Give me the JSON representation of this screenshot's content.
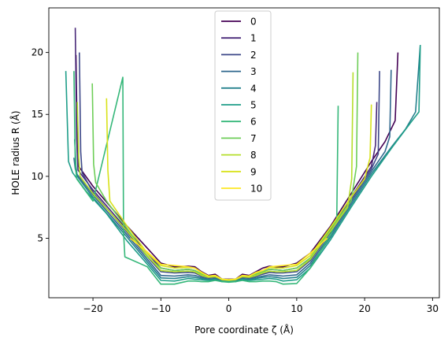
{
  "chart_data": {
    "type": "line",
    "xlabel": "Pore coordinate ζ (Å)",
    "ylabel": "HOLE radius R (Å)",
    "xlim": [
      -26.5,
      31
    ],
    "ylim": [
      0.2,
      23.6
    ],
    "x_ticks": [
      -20,
      -10,
      0,
      10,
      20,
      30
    ],
    "x_tick_labels": [
      "−20",
      "−10",
      "0",
      "10",
      "20",
      "30"
    ],
    "y_ticks": [
      5,
      10,
      15,
      20
    ],
    "y_tick_labels": [
      "5",
      "10",
      "15",
      "20"
    ],
    "grid": false,
    "legend_position": "top-center",
    "series": [
      {
        "name": "0",
        "color": "#440154",
        "x": [
          -22.5,
          -22.3,
          -22.1,
          -20,
          -15,
          -12,
          -10,
          -8,
          -6,
          -5,
          -4,
          -3,
          -2,
          -1,
          0,
          1,
          2,
          3,
          4,
          5,
          6,
          7,
          8,
          10,
          12,
          15,
          18,
          21,
          23,
          24.5,
          24.9
        ],
        "y": [
          19.8,
          12.5,
          10.8,
          9.2,
          6.0,
          4.2,
          3.0,
          2.7,
          2.75,
          2.7,
          2.3,
          2.0,
          2.1,
          1.7,
          1.7,
          1.7,
          2.1,
          2.0,
          2.3,
          2.6,
          2.75,
          2.7,
          2.7,
          3.0,
          3.8,
          6.0,
          8.6,
          11.2,
          12.8,
          14.5,
          20.0
        ]
      },
      {
        "name": "1",
        "color": "#482878",
        "x": [
          -22.6,
          -22.4,
          -22.2,
          -20,
          -15,
          -12,
          -10,
          -8,
          -6,
          -5,
          -4,
          -3,
          -2,
          -1,
          0,
          1,
          2,
          3,
          4,
          5,
          6,
          7,
          8,
          10,
          12,
          15,
          18,
          21,
          21.6,
          21.8
        ],
        "y": [
          22.0,
          13.0,
          10.5,
          8.9,
          5.7,
          3.8,
          2.6,
          2.4,
          2.5,
          2.4,
          2.1,
          1.9,
          1.95,
          1.7,
          1.65,
          1.7,
          1.95,
          1.9,
          2.1,
          2.3,
          2.5,
          2.45,
          2.4,
          2.6,
          3.4,
          5.7,
          8.3,
          10.8,
          12.5,
          16.0
        ]
      },
      {
        "name": "2",
        "color": "#3e4989",
        "x": [
          -22.0,
          -21.8,
          -21.6,
          -20,
          -15,
          -12,
          -10,
          -8,
          -6,
          -5,
          -4,
          -3,
          -2,
          -1,
          0,
          1,
          2,
          3,
          4,
          5,
          6,
          7,
          8,
          10,
          12,
          15,
          18,
          21,
          22,
          22.2
        ],
        "y": [
          20.0,
          12.0,
          10.3,
          8.7,
          5.5,
          3.5,
          2.3,
          2.2,
          2.25,
          2.2,
          1.95,
          1.8,
          1.85,
          1.65,
          1.6,
          1.65,
          1.85,
          1.8,
          1.95,
          2.1,
          2.25,
          2.2,
          2.2,
          2.3,
          3.2,
          5.5,
          8.1,
          10.6,
          11.8,
          18.5
        ]
      },
      {
        "name": "3",
        "color": "#31688e",
        "x": [
          -22.8,
          -22.6,
          -22.4,
          -20,
          -15,
          -12,
          -10,
          -8,
          -6,
          -5,
          -4,
          -3,
          -2,
          -1,
          0,
          1,
          2,
          3,
          4,
          5,
          6,
          7,
          8,
          10,
          12,
          15,
          18,
          21,
          23,
          23.7,
          23.9
        ],
        "y": [
          11.5,
          10.6,
          10.2,
          8.5,
          5.3,
          3.3,
          2.0,
          1.95,
          2.05,
          2.0,
          1.85,
          1.7,
          1.75,
          1.6,
          1.55,
          1.6,
          1.75,
          1.7,
          1.85,
          1.95,
          2.05,
          2.0,
          1.95,
          2.05,
          3.0,
          5.3,
          7.9,
          10.4,
          12.0,
          13.2,
          18.6
        ]
      },
      {
        "name": "4",
        "color": "#26828e",
        "x": [
          -22.7,
          -22.5,
          -22.3,
          -20,
          -15,
          -12,
          -10,
          -8,
          -6,
          -5,
          -4,
          -3,
          -2,
          -1,
          0,
          1,
          2,
          3,
          4,
          5,
          6,
          7,
          8,
          10,
          12,
          15,
          18,
          21,
          24,
          26,
          27.5,
          28.2
        ],
        "y": [
          13.0,
          10.8,
          10.0,
          8.3,
          5.1,
          3.1,
          1.8,
          1.75,
          1.9,
          1.85,
          1.75,
          1.65,
          1.7,
          1.55,
          1.5,
          1.55,
          1.7,
          1.65,
          1.75,
          1.85,
          1.9,
          1.85,
          1.75,
          1.85,
          2.8,
          5.1,
          7.7,
          10.2,
          12.4,
          13.8,
          15.2,
          20.6
        ]
      },
      {
        "name": "5",
        "color": "#1f9e89",
        "x": [
          -24.0,
          -23.6,
          -23.0,
          -21,
          -18,
          -15,
          -12,
          -10,
          -8,
          -6,
          -5,
          -4,
          -3,
          -2,
          -1,
          0,
          1,
          2,
          3,
          4,
          5,
          6,
          7,
          8,
          10,
          12,
          15,
          18,
          21,
          24,
          27,
          28,
          28.2
        ],
        "y": [
          18.5,
          11.2,
          10.3,
          8.8,
          7.0,
          4.8,
          2.9,
          1.6,
          1.55,
          1.75,
          1.7,
          1.65,
          1.6,
          1.65,
          1.5,
          1.5,
          1.5,
          1.65,
          1.6,
          1.65,
          1.7,
          1.75,
          1.7,
          1.55,
          1.65,
          2.6,
          4.9,
          7.5,
          10.0,
          12.3,
          14.5,
          15.2,
          20.6
        ]
      },
      {
        "name": "6",
        "color": "#35b779",
        "x": [
          -22.8,
          -22.6,
          -22.4,
          -20,
          -15.6,
          -15.5,
          -15.3,
          -12,
          -10,
          -8,
          -6,
          -5,
          -4,
          -3,
          -2,
          -1,
          0,
          1,
          2,
          3,
          4,
          5,
          6,
          7,
          8,
          10,
          12,
          15,
          15.9,
          16.1
        ],
        "y": [
          18.5,
          11.0,
          9.8,
          8.0,
          18.0,
          5.5,
          3.5,
          2.7,
          1.3,
          1.3,
          1.55,
          1.55,
          1.5,
          1.5,
          1.6,
          1.5,
          1.45,
          1.5,
          1.6,
          1.5,
          1.5,
          1.55,
          1.55,
          1.5,
          1.3,
          1.35,
          2.6,
          5.3,
          6.5,
          15.7
        ]
      },
      {
        "name": "7",
        "color": "#6ece58",
        "x": [
          -20.1,
          -19.9,
          -19.6,
          -18,
          -15,
          -12,
          -10,
          -8,
          -6,
          -5,
          -4,
          -3,
          -2,
          -1,
          0,
          1,
          2,
          3,
          4,
          5,
          6,
          7,
          8,
          10,
          12,
          15,
          18,
          18.8,
          19.0
        ],
        "y": [
          17.5,
          11.0,
          9.5,
          8.0,
          5.8,
          3.5,
          2.6,
          2.4,
          2.5,
          2.4,
          2.1,
          1.9,
          1.95,
          1.7,
          1.65,
          1.7,
          1.95,
          1.9,
          2.1,
          2.3,
          2.5,
          2.45,
          2.4,
          2.6,
          3.4,
          5.8,
          8.0,
          10.8,
          20.0
        ]
      },
      {
        "name": "8",
        "color": "#b5de2b",
        "x": [
          -22.3,
          -22.1,
          -21.9,
          -20,
          -15,
          -12,
          -10,
          -8,
          -6,
          -5,
          -4,
          -3,
          -2,
          -1,
          0,
          1,
          2,
          3,
          4,
          5,
          6,
          7,
          8,
          10,
          12,
          15,
          17.5,
          18.1,
          18.3
        ],
        "y": [
          16.0,
          11.5,
          10.0,
          8.6,
          5.6,
          3.6,
          2.4,
          2.3,
          2.35,
          2.3,
          2.0,
          1.85,
          1.9,
          1.65,
          1.6,
          1.65,
          1.9,
          1.85,
          2.0,
          2.2,
          2.35,
          2.3,
          2.3,
          2.4,
          3.3,
          5.6,
          7.5,
          9.8,
          18.4
        ]
      },
      {
        "name": "9",
        "color": "#d8e219",
        "x": [
          -18.0,
          -17.8,
          -17.5,
          -15,
          -12,
          -10,
          -8,
          -6,
          -5,
          -4,
          -3,
          -2,
          -1,
          0,
          1,
          2,
          3,
          4,
          5,
          6,
          7,
          8,
          10,
          12,
          15,
          18,
          20,
          20.8,
          21.0
        ],
        "y": [
          16.3,
          10.5,
          8.0,
          6.0,
          3.8,
          2.8,
          2.6,
          2.65,
          2.6,
          2.2,
          1.95,
          2.0,
          1.7,
          1.65,
          1.7,
          2.0,
          1.95,
          2.2,
          2.4,
          2.65,
          2.6,
          2.6,
          2.8,
          3.6,
          5.9,
          8.3,
          9.8,
          11.5,
          15.8
        ]
      },
      {
        "name": "10",
        "color": "#fde725",
        "x": [
          -14.5,
          -12,
          -10,
          -8,
          -6,
          -5,
          -4,
          -3,
          -2,
          -1,
          0,
          1,
          2,
          3,
          4,
          5,
          6,
          7,
          8,
          10,
          12,
          14.5
        ],
        "y": [
          5.0,
          3.9,
          2.9,
          2.8,
          2.7,
          2.6,
          2.25,
          1.95,
          2.0,
          1.7,
          1.65,
          1.7,
          2.0,
          1.95,
          2.25,
          2.4,
          2.7,
          2.75,
          2.8,
          2.9,
          3.8,
          5.0
        ]
      }
    ]
  }
}
